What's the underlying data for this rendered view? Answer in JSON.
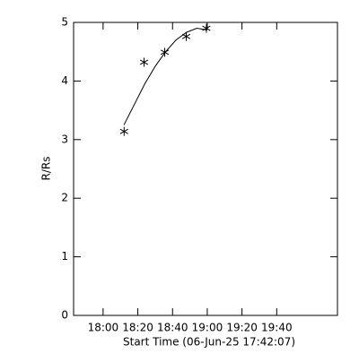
{
  "chart_data": {
    "type": "scatter",
    "xlabel": "Start Time (06-Jun-25 17:42:07)",
    "ylabel": "R/Rs",
    "xlim": [
      1063,
      1215
    ],
    "ylim": [
      0,
      5
    ],
    "xticks": [
      {
        "value": 1080,
        "label": "18:00"
      },
      {
        "value": 1100,
        "label": "18:20"
      },
      {
        "value": 1120,
        "label": "18:40"
      },
      {
        "value": 1140,
        "label": "19:00"
      },
      {
        "value": 1160,
        "label": "19:20"
      },
      {
        "value": 1180,
        "label": "19:40"
      }
    ],
    "yticks": [
      0,
      1,
      2,
      3,
      4,
      5
    ],
    "series": [
      {
        "color": "#000000",
        "marker": "asterisk",
        "x": [
          1092.1,
          1103.6,
          1115.5,
          1127.9,
          1139.5
        ],
        "values": [
          3.14,
          4.32,
          4.49,
          4.76,
          4.9
        ]
      },
      {
        "color": "#000000",
        "marker": "line",
        "x": [
          1092,
          1098,
          1104,
          1110,
          1116,
          1122,
          1128,
          1134,
          1140
        ],
        "values": [
          3.25,
          3.6,
          3.95,
          4.25,
          4.5,
          4.7,
          4.83,
          4.9,
          4.87
        ]
      }
    ]
  }
}
